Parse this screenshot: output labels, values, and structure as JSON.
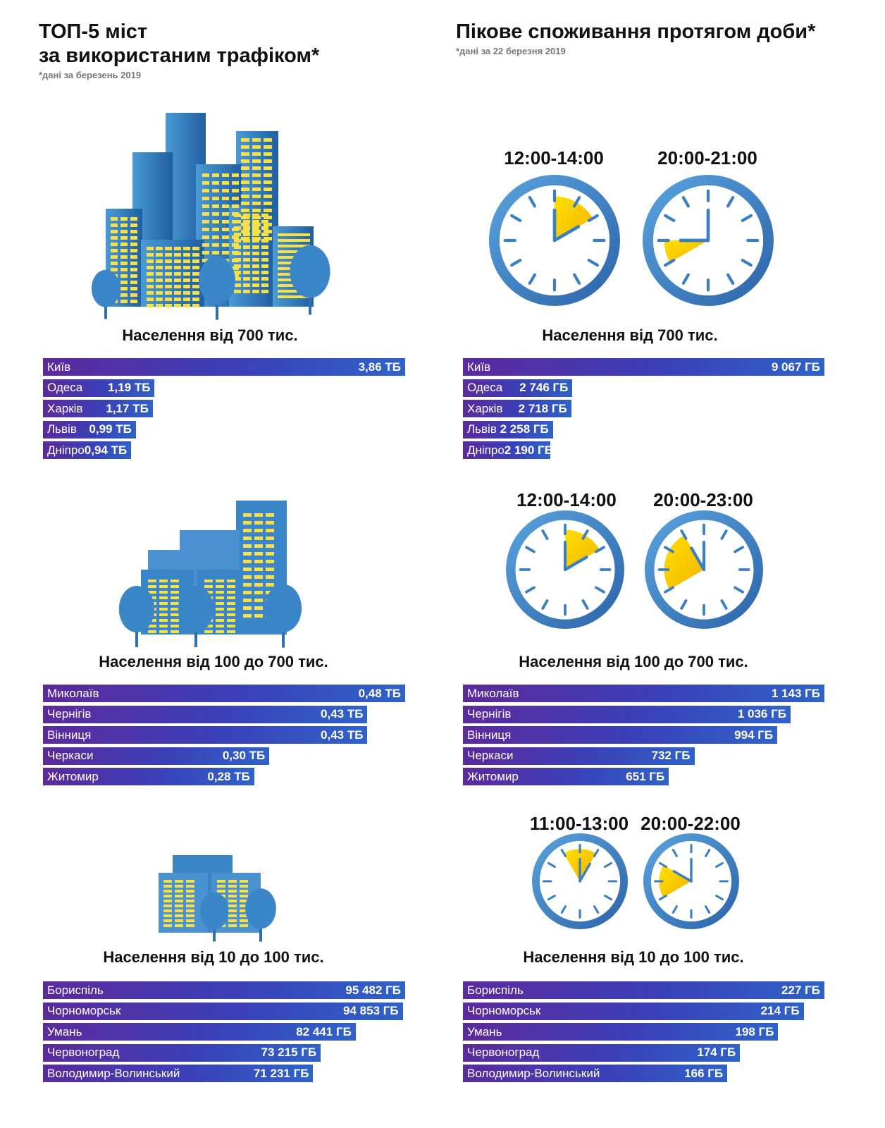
{
  "left_title": {
    "line1": "ТОП-5 міст",
    "line2": "за використаним трафіком*",
    "note": "*дані за березень 2019"
  },
  "right_title": {
    "line1": "Пікове споживання протягом доби*",
    "note": "*дані за 22 березня 2019"
  },
  "colors": {
    "bar_start": "#5c2a9d",
    "bar_end": "#2f63c8",
    "clock_blue": "#3a7fc4",
    "clock_yellow": "#f7d21a",
    "building_blue": "#3a86c8",
    "window_yellow": "#f8e046"
  },
  "icons": [
    "city-large-illustration",
    "city-medium-illustration",
    "city-small-illustration",
    "clock-icon"
  ],
  "chart_data": [
    {
      "type": "bar",
      "title": "Населення від 700 тис.",
      "categories": [
        "Київ",
        "Одеса",
        "Харків",
        "Львів",
        "Дніпро"
      ],
      "values": [
        3.86,
        1.19,
        1.17,
        0.99,
        0.94
      ],
      "labels": [
        "3,86 ТБ",
        "1,19 ТБ",
        "1,17 ТБ",
        "0,99 ТБ",
        "0,94 ТБ"
      ],
      "unit": "ТБ"
    },
    {
      "type": "bar",
      "title": "Населення від 100 до 700 тис.",
      "categories": [
        "Миколаїв",
        "Чернігів",
        "Вінниця",
        "Черкаси",
        "Житомир"
      ],
      "values": [
        0.48,
        0.43,
        0.43,
        0.3,
        0.28
      ],
      "labels": [
        "0,48 ТБ",
        "0,43 ТБ",
        "0,43 ТБ",
        "0,30 ТБ",
        "0,28 ТБ"
      ],
      "unit": "ТБ"
    },
    {
      "type": "bar",
      "title": "Населення від 10 до 100 тис.",
      "categories": [
        "Бориспіль",
        "Чорноморськ",
        "Умань",
        "Червоноград",
        "Володимир-Волинський"
      ],
      "values": [
        95482,
        94853,
        82441,
        73215,
        71231
      ],
      "labels": [
        "95 482 ГБ",
        "94 853 ГБ",
        "82 441 ГБ",
        "73 215 ГБ",
        "71 231 ГБ"
      ],
      "unit": "ГБ"
    },
    {
      "type": "bar",
      "title": "Населення від 700 тис.",
      "categories": [
        "Київ",
        "Одеса",
        "Харків",
        "Львів",
        "Дніпро"
      ],
      "values": [
        9067,
        2746,
        2718,
        2258,
        2190
      ],
      "labels": [
        "9 067 ГБ",
        "2 746 ГБ",
        "2 718 ГБ",
        "2 258 ГБ",
        "2 190 ГБ"
      ],
      "unit": "ГБ",
      "peak_times": [
        "12:00-14:00",
        "20:00-21:00"
      ]
    },
    {
      "type": "bar",
      "title": "Населення від 100 до 700 тис.",
      "categories": [
        "Миколаїв",
        "Чернігів",
        "Вінниця",
        "Черкаси",
        "Житомир"
      ],
      "values": [
        1143,
        1036,
        994,
        732,
        651
      ],
      "labels": [
        "1 143 ГБ",
        "1 036 ГБ",
        "994 ГБ",
        "732 ГБ",
        "651 ГБ"
      ],
      "unit": "ГБ",
      "peak_times": [
        "12:00-14:00",
        "20:00-23:00"
      ]
    },
    {
      "type": "bar",
      "title": "Населення від 10 до 100 тис.",
      "categories": [
        "Бориспіль",
        "Чорноморськ",
        "Умань",
        "Червоноград",
        "Володимир-Волинський"
      ],
      "values": [
        227,
        214,
        198,
        174,
        166
      ],
      "labels": [
        "227 ГБ",
        "214 ГБ",
        "198 ГБ",
        "174 ГБ",
        "166 ГБ"
      ],
      "unit": "ГБ",
      "peak_times": [
        "11:00-13:00",
        "20:00-22:00"
      ]
    }
  ],
  "clocks": [
    {
      "label": "12:00-14:00",
      "start_hour": 12,
      "end_hour": 14
    },
    {
      "label": "20:00-21:00",
      "start_hour": 20,
      "end_hour": 21
    },
    {
      "label": "12:00-14:00",
      "start_hour": 12,
      "end_hour": 14
    },
    {
      "label": "20:00-23:00",
      "start_hour": 20,
      "end_hour": 23
    },
    {
      "label": "11:00-13:00",
      "start_hour": 11,
      "end_hour": 13
    },
    {
      "label": "20:00-22:00",
      "start_hour": 20,
      "end_hour": 22
    }
  ]
}
